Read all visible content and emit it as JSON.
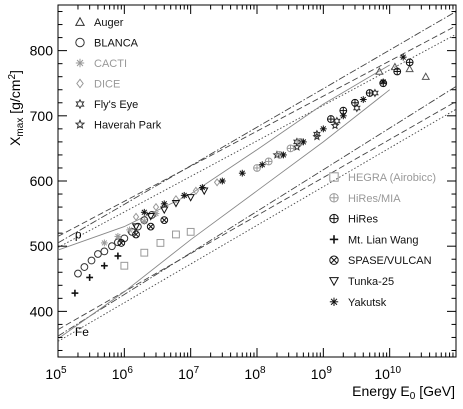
{
  "chart_data": {
    "type": "scatter",
    "title": "",
    "xlabel": "Energy E₀ [GeV]",
    "ylabel": "Xₘₐₓ [g/cm²]",
    "xlabel_parts": {
      "main": "Energy E",
      "sub": "0",
      "unit": " [GeV]"
    },
    "ylabel_parts": {
      "main": "X",
      "sub": "max",
      "unit": " [g/cm",
      "sup": "2",
      "close": "]"
    },
    "xscale": "log",
    "xlim": [
      100000,
      100000000000
    ],
    "ylim": [
      330,
      870
    ],
    "grid": false,
    "x_ticks": [
      {
        "value": 100000,
        "base": "10",
        "exp": "5"
      },
      {
        "value": 1000000,
        "base": "10",
        "exp": "6"
      },
      {
        "value": 10000000,
        "base": "10",
        "exp": "7"
      },
      {
        "value": 100000000,
        "base": "10",
        "exp": "8"
      },
      {
        "value": 1000000000,
        "base": "10",
        "exp": "9"
      },
      {
        "value": 10000000000,
        "base": "10",
        "exp": "10"
      }
    ],
    "y_ticks": [
      400,
      500,
      600,
      700,
      800
    ],
    "legend_left": [
      {
        "label": "Auger",
        "marker": "triangle",
        "color": "#333333"
      },
      {
        "label": "BLANCA",
        "marker": "circle",
        "color": "#333333"
      },
      {
        "label": "CACTI",
        "marker": "asterisk",
        "color": "#999999"
      },
      {
        "label": "DICE",
        "marker": "diamond",
        "color": "#999999"
      },
      {
        "label": "Fly's Eye",
        "marker": "star6",
        "color": "#333333"
      },
      {
        "label": "Haverah Park",
        "marker": "star5",
        "color": "#333333"
      }
    ],
    "legend_right": [
      {
        "label": "HEGRA (Airobicc)",
        "marker": "square",
        "color": "#999999"
      },
      {
        "label": "HiRes/MIA",
        "marker": "circleplus",
        "color": "#999999"
      },
      {
        "label": "HiRes",
        "marker": "circleplus",
        "color": "#111111"
      },
      {
        "label": "Mt. Lian Wang",
        "marker": "cross",
        "color": "#111111"
      },
      {
        "label": "SPASE/VULCAN",
        "marker": "circlex",
        "color": "#111111"
      },
      {
        "label": "Tunka-25",
        "marker": "triangledown",
        "color": "#111111"
      },
      {
        "label": "Yakutsk",
        "marker": "asterisk",
        "color": "#111111"
      }
    ],
    "annotations": [
      {
        "text": "p",
        "x": 180000,
        "y": 512
      },
      {
        "text": "Fe",
        "x": 180000,
        "y": 362
      }
    ],
    "model_lines": [
      {
        "group": "p",
        "style": "dash",
        "points": [
          [
            100000,
            515
          ],
          [
            100000000000,
            838
          ]
        ]
      },
      {
        "group": "p",
        "style": "dashdot",
        "points": [
          [
            100000,
            505
          ],
          [
            100000000000,
            860
          ]
        ]
      },
      {
        "group": "p",
        "style": "dotted",
        "points": [
          [
            100000,
            498
          ],
          [
            100000000000,
            825
          ]
        ]
      },
      {
        "group": "p",
        "style": "solid",
        "points": [
          [
            100000,
            494
          ],
          [
            1000000,
            530
          ],
          [
            10000000,
            580
          ],
          [
            100000000,
            648
          ],
          [
            1000000000,
            718
          ],
          [
            10000000000,
            778
          ]
        ]
      },
      {
        "group": "Fe",
        "style": "dash",
        "points": [
          [
            100000,
            372
          ],
          [
            100000000000,
            722
          ]
        ]
      },
      {
        "group": "Fe",
        "style": "dashdot",
        "points": [
          [
            100000,
            362
          ],
          [
            100000000000,
            745
          ]
        ]
      },
      {
        "group": "Fe",
        "style": "dotted",
        "points": [
          [
            100000,
            354
          ],
          [
            100000000000,
            710
          ]
        ]
      },
      {
        "group": "Fe",
        "style": "solid",
        "points": [
          [
            100000,
            358
          ],
          [
            1000000,
            430
          ],
          [
            10000000,
            510
          ],
          [
            100000000,
            585
          ],
          [
            1000000000,
            660
          ],
          [
            10000000000,
            740
          ]
        ]
      }
    ],
    "series": [
      {
        "name": "Auger",
        "marker": "triangle",
        "color": "#555555",
        "points": [
          [
            7000000000,
            768
          ],
          [
            12000000000,
            775
          ],
          [
            20000000000,
            772
          ],
          [
            35000000000,
            760
          ]
        ]
      },
      {
        "name": "BLANCA",
        "marker": "circle",
        "color": "#333333",
        "points": [
          [
            200000,
            458
          ],
          [
            250000,
            468
          ],
          [
            320000,
            478
          ],
          [
            400000,
            488
          ],
          [
            500000,
            492
          ],
          [
            650000,
            500
          ],
          [
            800000,
            506
          ],
          [
            1000000,
            512
          ],
          [
            1300000,
            522
          ],
          [
            1600000,
            530
          ],
          [
            2000000,
            540
          ],
          [
            2600000,
            548
          ]
        ]
      },
      {
        "name": "CACTI",
        "marker": "asterisk",
        "color": "#999999",
        "points": [
          [
            500000,
            505
          ],
          [
            800000,
            515
          ],
          [
            1200000,
            525
          ],
          [
            2000000,
            538
          ],
          [
            3000000,
            550
          ]
        ]
      },
      {
        "name": "DICE",
        "marker": "diamond",
        "color": "#999999",
        "points": [
          [
            1500000,
            545
          ],
          [
            3000000,
            560
          ],
          [
            6000000,
            572
          ],
          [
            12000000,
            585
          ],
          [
            25000000,
            598
          ]
        ]
      },
      {
        "name": "Fly's Eye",
        "marker": "star6",
        "color": "#333333",
        "points": [
          [
            400000000,
            660
          ],
          [
            800000000,
            672
          ],
          [
            1600000000,
            692
          ],
          [
            3200000000,
            712
          ],
          [
            6000000000,
            735
          ]
        ]
      },
      {
        "name": "Haverah Park",
        "marker": "star5",
        "color": "#333333",
        "points": [
          [
            200000000,
            640
          ],
          [
            400000000,
            652
          ],
          [
            800000000,
            668
          ],
          [
            1500000000,
            685
          ]
        ]
      },
      {
        "name": "HEGRA (Airobicc)",
        "marker": "square",
        "color": "#999999",
        "points": [
          [
            1000000,
            470
          ],
          [
            2000000,
            490
          ],
          [
            3500000,
            505
          ],
          [
            6000000,
            518
          ],
          [
            10000000,
            522
          ]
        ]
      },
      {
        "name": "HiRes/MIA",
        "marker": "circleplus",
        "color": "#999999",
        "points": [
          [
            100000000,
            620
          ],
          [
            150000000,
            630
          ],
          [
            220000000,
            640
          ],
          [
            320000000,
            650
          ],
          [
            450000000,
            660
          ]
        ]
      },
      {
        "name": "HiRes",
        "marker": "circleplus",
        "color": "#111111",
        "points": [
          [
            1300000000,
            695
          ],
          [
            2000000000,
            708
          ],
          [
            3000000000,
            720
          ],
          [
            5000000000,
            735
          ],
          [
            8000000000,
            750
          ],
          [
            13000000000,
            768
          ],
          [
            20000000000,
            782
          ]
        ]
      },
      {
        "name": "Mt. Lian Wang",
        "marker": "cross",
        "color": "#111111",
        "points": [
          [
            180000,
            428
          ],
          [
            300000,
            452
          ],
          [
            500000,
            470
          ],
          [
            800000,
            485
          ]
        ]
      },
      {
        "name": "SPASE/VULCAN",
        "marker": "circlex",
        "color": "#111111",
        "points": [
          [
            900000,
            505
          ],
          [
            1500000,
            518
          ],
          [
            2500000,
            530
          ],
          [
            4000000,
            540
          ]
        ]
      },
      {
        "name": "Tunka-25",
        "marker": "triangledown",
        "color": "#111111",
        "points": [
          [
            1500000,
            530
          ],
          [
            2500000,
            546
          ],
          [
            4000000,
            556
          ],
          [
            6000000,
            566
          ],
          [
            10000000,
            575
          ],
          [
            16000000,
            585
          ]
        ]
      },
      {
        "name": "Yakutsk",
        "marker": "asterisk",
        "color": "#111111",
        "points": [
          [
            2000000,
            552
          ],
          [
            4000000,
            565
          ],
          [
            8000000,
            578
          ],
          [
            15000000,
            590
          ],
          [
            30000000,
            600
          ],
          [
            60000000,
            612
          ],
          [
            120000000,
            625
          ],
          [
            250000000,
            640
          ],
          [
            500000000,
            660
          ],
          [
            1000000000,
            680
          ],
          [
            2000000000,
            700
          ],
          [
            4000000000,
            725
          ],
          [
            8000000000,
            752
          ],
          [
            16000000000,
            790
          ]
        ]
      }
    ]
  }
}
